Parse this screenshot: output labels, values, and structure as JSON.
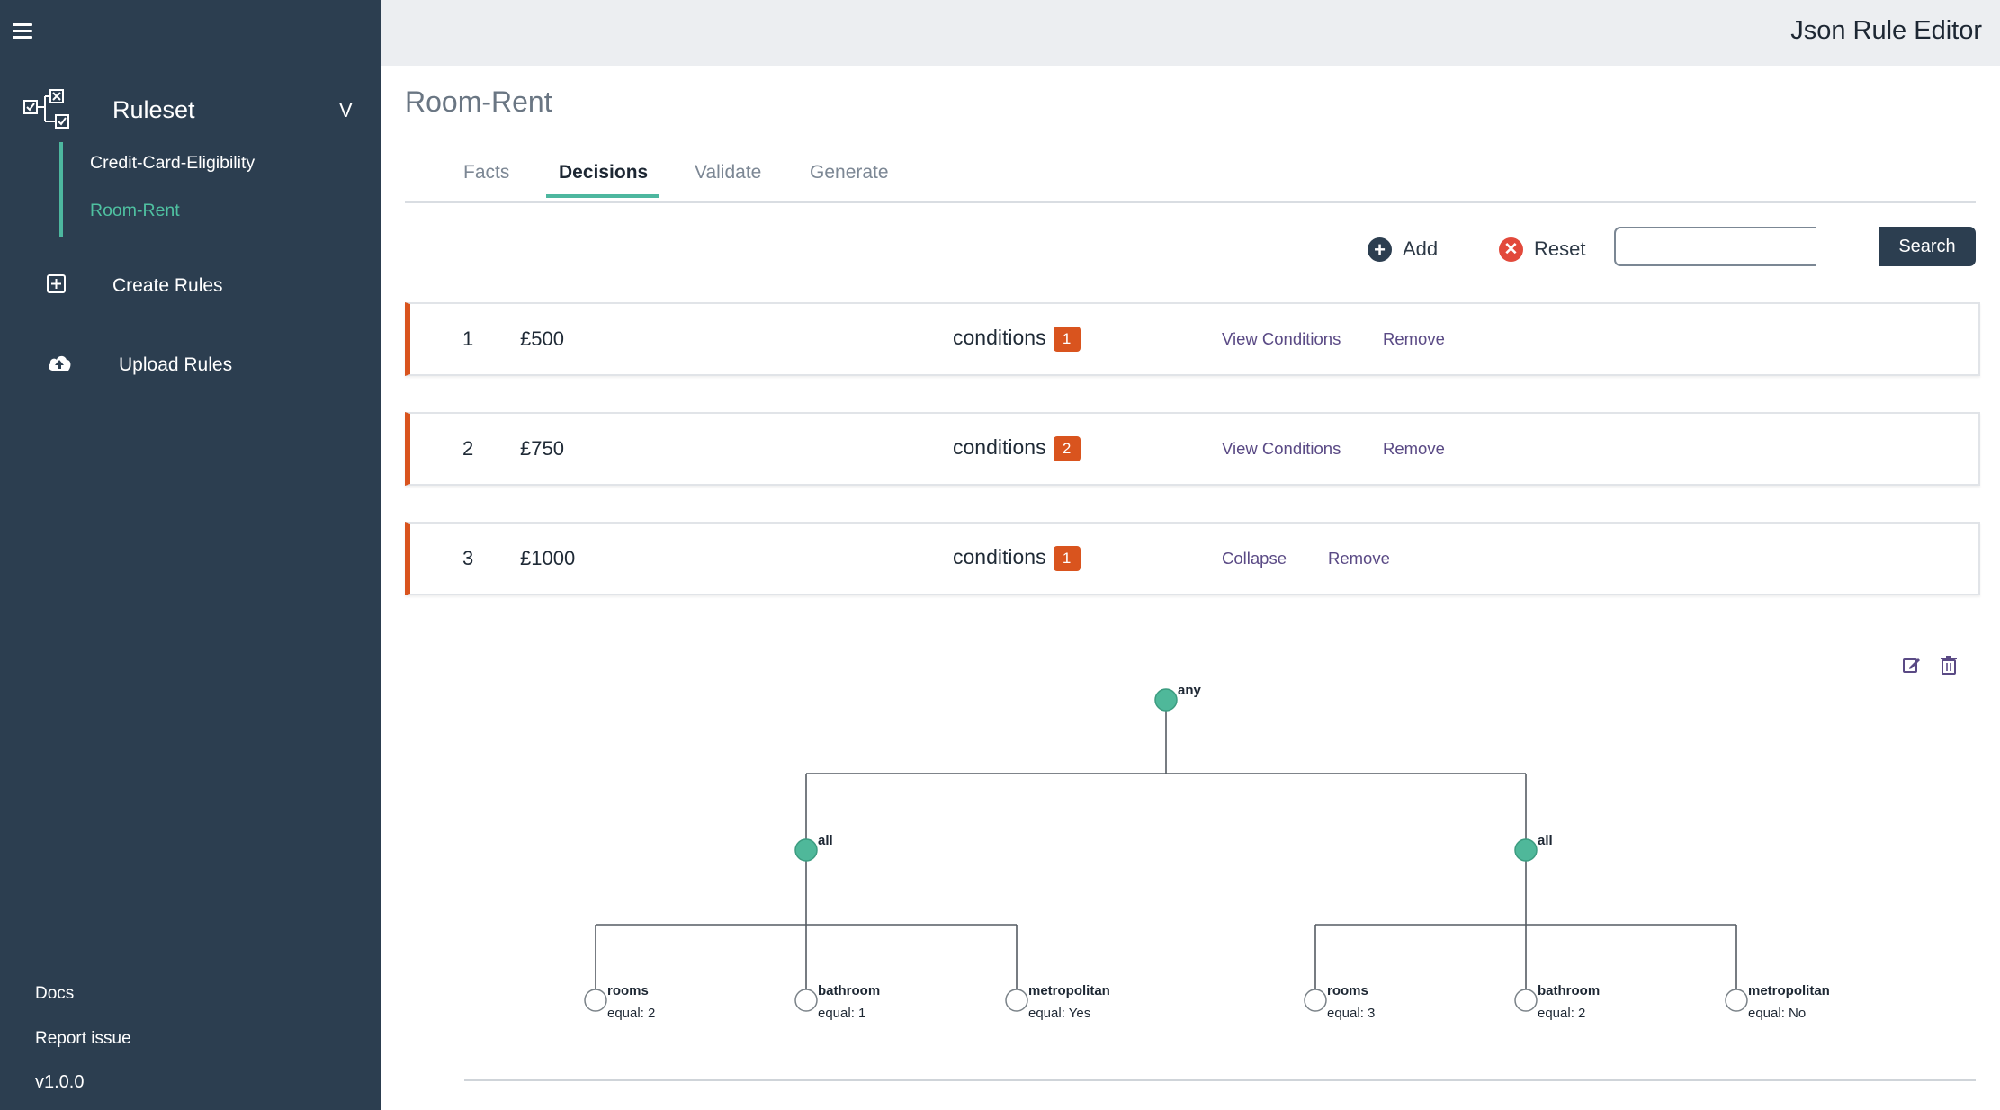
{
  "app": {
    "title": "Json Rule Editor"
  },
  "sidebar": {
    "ruleset_label": "Ruleset",
    "chevron": "V",
    "rulesets": [
      {
        "label": "Credit-Card-Eligibility"
      },
      {
        "label": "Room-Rent"
      }
    ],
    "create_rules": "Create Rules",
    "upload_rules": "Upload Rules",
    "docs": "Docs",
    "report_issue": "Report issue",
    "version": "v1.0.0"
  },
  "main": {
    "title": "Room-Rent",
    "tabs": [
      {
        "label": "Facts"
      },
      {
        "label": "Decisions"
      },
      {
        "label": "Validate"
      },
      {
        "label": "Generate"
      }
    ],
    "active_tab": "Decisions",
    "toolbar": {
      "add_label": "Add",
      "reset_label": "Reset",
      "search_value": "",
      "search_placeholder": "",
      "search_label": "Search"
    },
    "decisions": [
      {
        "index": "1",
        "value": "£500",
        "conditions_label": "conditions",
        "count": "1",
        "action1": "View Conditions",
        "action2": "Remove"
      },
      {
        "index": "2",
        "value": "£750",
        "conditions_label": "conditions",
        "count": "2",
        "action1": "View Conditions",
        "action2": "Remove"
      },
      {
        "index": "3",
        "value": "£1000",
        "conditions_label": "conditions",
        "count": "1",
        "action1": "Collapse",
        "action2": "Remove"
      }
    ],
    "tree": {
      "root": "any",
      "branches": [
        {
          "label": "all",
          "leaves": [
            {
              "fact": "rooms",
              "condition": "equal: 2"
            },
            {
              "fact": "bathroom",
              "condition": "equal: 1"
            },
            {
              "fact": "metropolitan",
              "condition": "equal: Yes"
            }
          ]
        },
        {
          "label": "all",
          "leaves": [
            {
              "fact": "rooms",
              "condition": "equal: 3"
            },
            {
              "fact": "bathroom",
              "condition": "equal: 2"
            },
            {
              "fact": "metropolitan",
              "condition": "equal: No"
            }
          ]
        }
      ]
    }
  },
  "colors": {
    "sidebar": "#2c3e50",
    "accent": "#4db79f",
    "badge": "#d9541e",
    "action_link": "#5a4a85",
    "add_icon": "#2c3e50",
    "reset_icon": "#e2493b"
  }
}
